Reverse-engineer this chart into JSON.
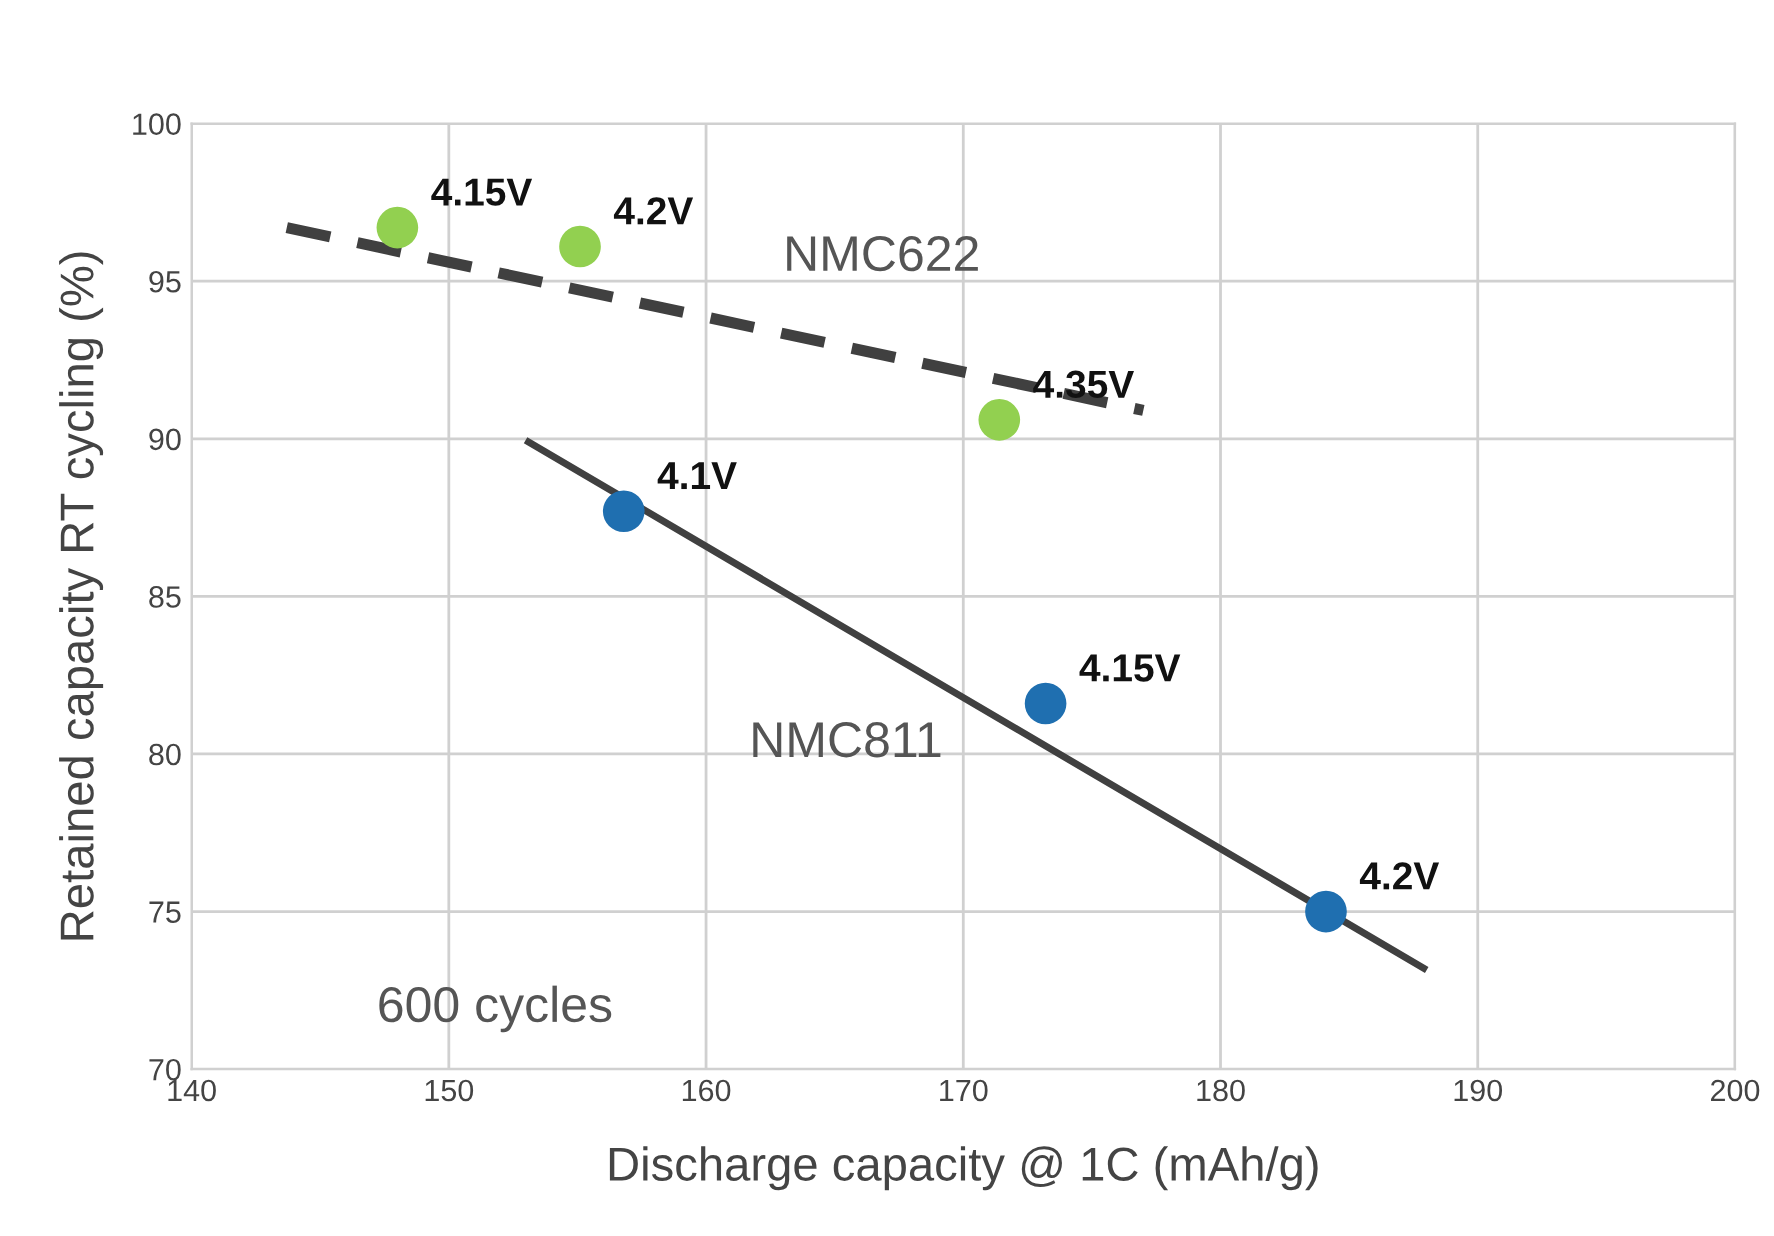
{
  "chart_data": {
    "type": "scatter",
    "xlabel": "Discharge capacity @ 1C (mAh/g)",
    "ylabel": "Retained capacity RT cycling (%)",
    "xlim": [
      140,
      200
    ],
    "xticks": [
      140,
      150,
      160,
      170,
      180,
      190,
      200
    ],
    "ylim": [
      70,
      100
    ],
    "yticks": [
      70,
      75,
      80,
      85,
      90,
      95,
      100
    ],
    "grid": true,
    "annotations": [
      "600 cycles",
      {
        "text": "4.15V",
        "x": 148.0,
        "y": 96.7
      },
      {
        "text": "4.2V",
        "x": 155.1,
        "y": 96.1
      },
      {
        "text": "4.35V",
        "x": 171.4,
        "y": 90.6
      },
      {
        "text": "4.1V",
        "x": 156.8,
        "y": 87.7
      },
      {
        "text": "4.15V",
        "x": 173.2,
        "y": 81.6
      },
      {
        "text": "4.2V",
        "x": 184.1,
        "y": 75.0
      }
    ],
    "series": [
      {
        "color": "#92d050",
        "marker": "circle",
        "x": [
          148.0,
          155.1,
          171.4
        ],
        "values": [
          96.7,
          96.1,
          90.6
        ]
      },
      {
        "name": "NMC622",
        "type": "line",
        "color": "#404040",
        "line_style": "dashed",
        "marker": "none",
        "x": [
          143.7,
          177.0
        ],
        "values": [
          96.7,
          90.9
        ]
      },
      {
        "color": "#1f6fb0",
        "marker": "circle",
        "x": [
          156.8,
          173.2,
          184.1
        ],
        "values": [
          87.7,
          81.6,
          75.0
        ]
      },
      {
        "name": "NMC811",
        "type": "line",
        "color": "#404040",
        "line_style": "solid",
        "marker": "none",
        "x": [
          153.1,
          187.9
        ],
        "values": [
          89.9,
          73.2
        ]
      }
    ]
  }
}
